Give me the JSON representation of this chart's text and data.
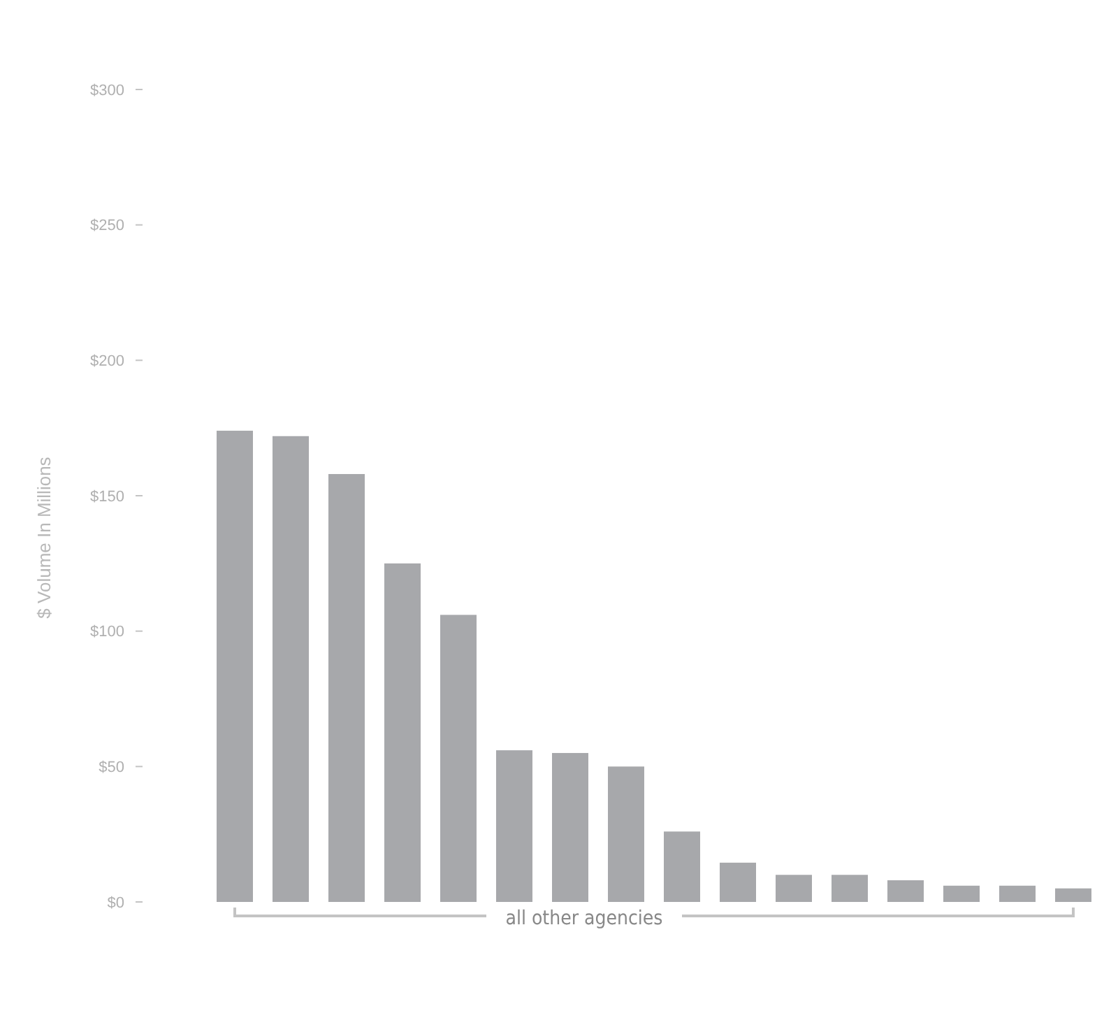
{
  "chart_data": {
    "type": "bar",
    "ylabel": "$ Volume In Millions",
    "categories": [
      null,
      null,
      null,
      null,
      null,
      null,
      null,
      null,
      null,
      null,
      null,
      null,
      null,
      null,
      null,
      null
    ],
    "values": [
      174,
      172,
      158,
      125,
      106,
      56,
      55,
      50,
      26,
      14.5,
      10,
      10,
      8,
      6,
      6,
      5
    ],
    "color": "#a7a8ab",
    "ylim": [
      0,
      300
    ],
    "yticks": [
      {
        "value": 0,
        "label": "$0"
      },
      {
        "value": 50,
        "label": "$50"
      },
      {
        "value": 100,
        "label": "$100"
      },
      {
        "value": 150,
        "label": "$150"
      },
      {
        "value": 200,
        "label": "$200"
      },
      {
        "value": 250,
        "label": "$250"
      },
      {
        "value": 300,
        "label": "$300"
      }
    ],
    "grid": false,
    "annotations": [
      "all other agencies"
    ]
  }
}
